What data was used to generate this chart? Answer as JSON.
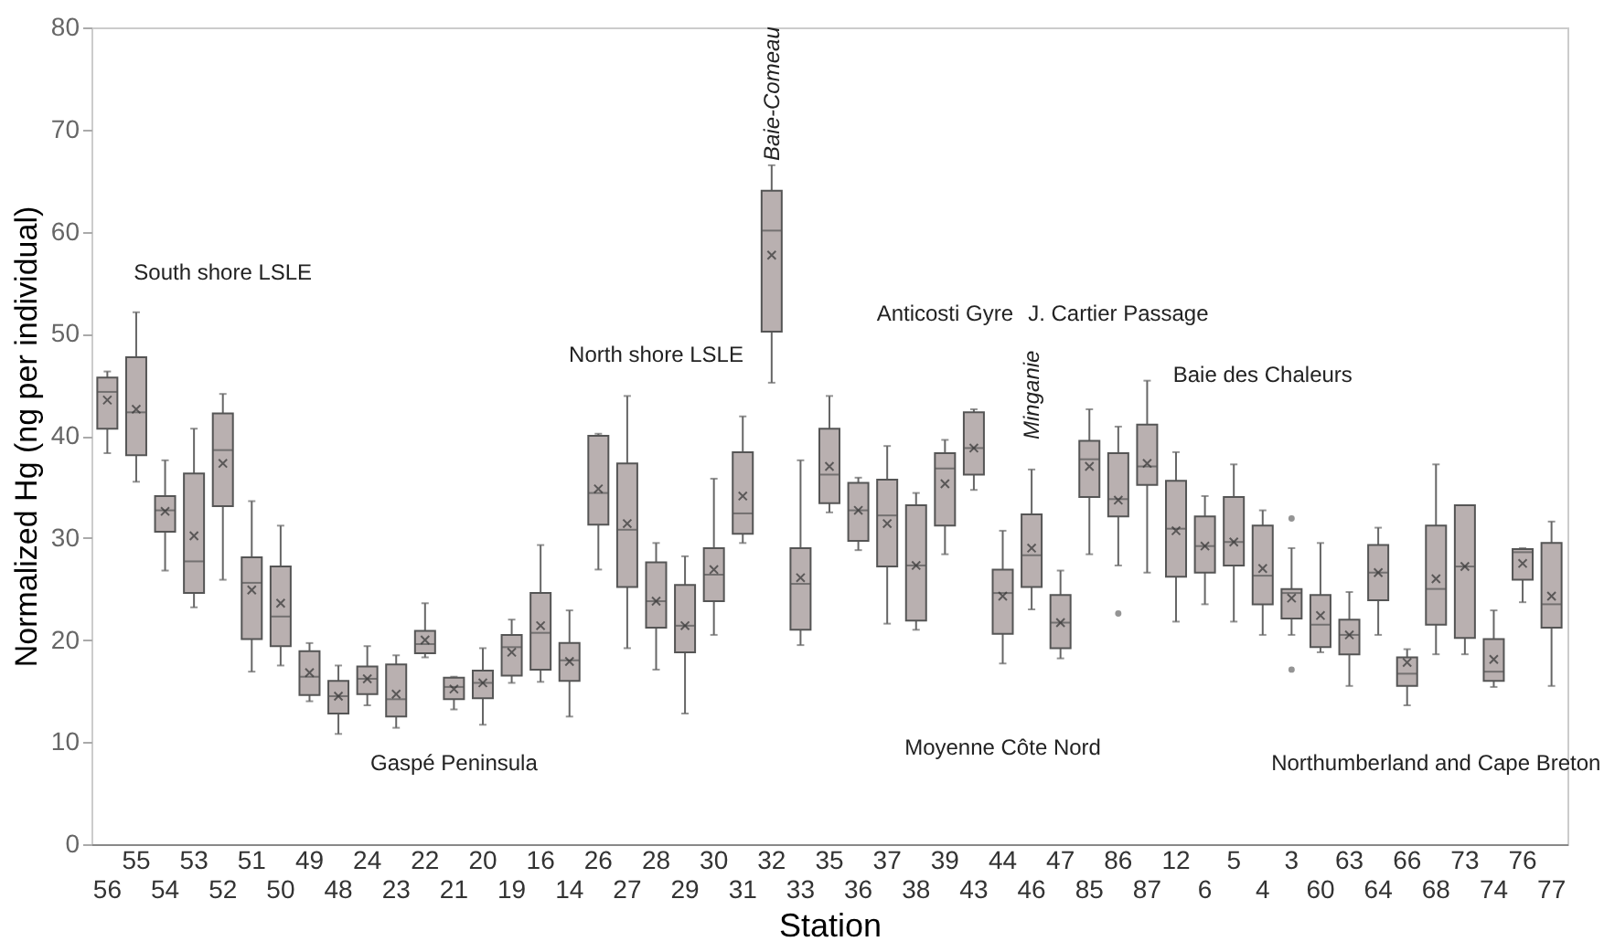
{
  "chart_data": {
    "type": "box",
    "xlabel": "Station",
    "ylabel": "Normalized Hg (ng per individual)",
    "categories": [
      "56",
      "55",
      "54",
      "53",
      "52",
      "51",
      "50",
      "49",
      "48",
      "24",
      "23",
      "22",
      "21",
      "20",
      "19",
      "16",
      "14",
      "26",
      "27",
      "28",
      "29",
      "30",
      "31",
      "32",
      "33",
      "35",
      "36",
      "37",
      "38",
      "39",
      "43",
      "44",
      "46",
      "47",
      "85",
      "86",
      "87",
      "12",
      "6",
      "5",
      "4",
      "3",
      "60",
      "63",
      "64",
      "66",
      "68",
      "73",
      "74",
      "76",
      "77"
    ],
    "color": "#b9b0b0",
    "boxes": [
      {
        "low": 38.3,
        "q1": 40.7,
        "median": 44.3,
        "q3": 45.7,
        "high": 46.3,
        "mean": 43.5
      },
      {
        "low": 35.5,
        "q1": 38.1,
        "median": 42.3,
        "q3": 47.7,
        "high": 52.1,
        "mean": 42.6
      },
      {
        "low": 26.8,
        "q1": 30.6,
        "median": 32.7,
        "q3": 34.1,
        "high": 37.6,
        "mean": 32.6
      },
      {
        "low": 23.2,
        "q1": 24.6,
        "median": 27.7,
        "q3": 36.3,
        "high": 40.7,
        "mean": 30.2
      },
      {
        "low": 25.9,
        "q1": 33.1,
        "median": 38.6,
        "q3": 42.2,
        "high": 44.1,
        "mean": 37.3
      },
      {
        "low": 16.9,
        "q1": 20.1,
        "median": 25.6,
        "q3": 28.1,
        "high": 33.6,
        "mean": 24.9
      },
      {
        "low": 17.5,
        "q1": 19.4,
        "median": 22.3,
        "q3": 27.2,
        "high": 31.2,
        "mean": 23.6
      },
      {
        "low": 14.0,
        "q1": 14.6,
        "median": 16.4,
        "q3": 18.9,
        "high": 19.7,
        "mean": 16.8
      },
      {
        "low": 10.8,
        "q1": 12.8,
        "median": 14.5,
        "q3": 16.0,
        "high": 17.5,
        "mean": 14.5
      },
      {
        "low": 13.6,
        "q1": 14.7,
        "median": 16.2,
        "q3": 17.4,
        "high": 19.4,
        "mean": 16.2
      },
      {
        "low": 11.4,
        "q1": 12.5,
        "median": 14.2,
        "q3": 17.6,
        "high": 18.5,
        "mean": 14.7
      },
      {
        "low": 18.3,
        "q1": 18.7,
        "median": 19.6,
        "q3": 20.9,
        "high": 23.6,
        "mean": 20.0
      },
      {
        "low": 13.2,
        "q1": 14.2,
        "median": 15.4,
        "q3": 16.3,
        "high": 16.4,
        "mean": 15.2
      },
      {
        "low": 11.7,
        "q1": 14.3,
        "median": 15.8,
        "q3": 17.0,
        "high": 19.2,
        "mean": 15.8
      },
      {
        "low": 15.8,
        "q1": 16.5,
        "median": 19.3,
        "q3": 20.5,
        "high": 22.0,
        "mean": 18.8
      },
      {
        "low": 15.9,
        "q1": 17.1,
        "median": 20.7,
        "q3": 24.6,
        "high": 29.3,
        "mean": 21.4
      },
      {
        "low": 12.5,
        "q1": 16.0,
        "median": 18.0,
        "q3": 19.7,
        "high": 22.9,
        "mean": 17.9
      },
      {
        "low": 26.9,
        "q1": 31.3,
        "median": 34.4,
        "q3": 40.0,
        "high": 40.2,
        "mean": 34.8
      },
      {
        "low": 19.2,
        "q1": 25.2,
        "median": 30.8,
        "q3": 37.3,
        "high": 43.9,
        "mean": 31.4
      },
      {
        "low": 17.1,
        "q1": 21.2,
        "median": 23.8,
        "q3": 27.6,
        "high": 29.5,
        "mean": 23.8
      },
      {
        "low": 12.8,
        "q1": 18.8,
        "median": 21.4,
        "q3": 25.4,
        "high": 28.2,
        "mean": 21.4
      },
      {
        "low": 20.5,
        "q1": 23.8,
        "median": 26.4,
        "q3": 29.0,
        "high": 35.8,
        "mean": 26.9
      },
      {
        "low": 29.5,
        "q1": 30.4,
        "median": 32.4,
        "q3": 38.4,
        "high": 41.9,
        "mean": 34.1
      },
      {
        "low": 45.2,
        "q1": 50.2,
        "median": 60.1,
        "q3": 64.0,
        "high": 66.5,
        "mean": 57.7
      },
      {
        "low": 19.5,
        "q1": 21.0,
        "median": 25.5,
        "q3": 29.0,
        "high": 37.6,
        "mean": 26.1
      },
      {
        "low": 32.5,
        "q1": 33.4,
        "median": 36.2,
        "q3": 40.7,
        "high": 43.9,
        "mean": 37.0
      },
      {
        "low": 28.8,
        "q1": 29.7,
        "median": 32.7,
        "q3": 35.4,
        "high": 35.9,
        "mean": 32.7
      },
      {
        "low": 21.6,
        "q1": 27.2,
        "median": 32.2,
        "q3": 35.7,
        "high": 39.0,
        "mean": 31.4
      },
      {
        "low": 21.0,
        "q1": 21.9,
        "median": 27.3,
        "q3": 33.2,
        "high": 34.4,
        "mean": 27.3
      },
      {
        "low": 28.4,
        "q1": 31.2,
        "median": 36.8,
        "q3": 38.3,
        "high": 39.6,
        "mean": 35.3
      },
      {
        "low": 34.7,
        "q1": 36.2,
        "median": 38.8,
        "q3": 42.3,
        "high": 42.6,
        "mean": 38.8
      },
      {
        "low": 17.7,
        "q1": 20.6,
        "median": 24.6,
        "q3": 26.9,
        "high": 30.7,
        "mean": 24.3
      },
      {
        "low": 23.0,
        "q1": 25.2,
        "median": 28.3,
        "q3": 32.3,
        "high": 36.7,
        "mean": 29.0
      },
      {
        "low": 18.2,
        "q1": 19.2,
        "median": 21.7,
        "q3": 24.4,
        "high": 26.8,
        "mean": 21.7
      },
      {
        "low": 28.4,
        "q1": 34.0,
        "median": 37.7,
        "q3": 39.5,
        "high": 42.6,
        "mean": 37.0
      },
      {
        "low": 27.3,
        "q1": 32.1,
        "median": 33.8,
        "q3": 38.3,
        "high": 40.9,
        "mean": 33.7,
        "outliers": [
          22.6
        ]
      },
      {
        "low": 26.6,
        "q1": 35.2,
        "median": 37.0,
        "q3": 41.1,
        "high": 45.4,
        "mean": 37.3
      },
      {
        "low": 21.8,
        "q1": 26.2,
        "median": 30.9,
        "q3": 35.6,
        "high": 38.4,
        "mean": 30.7
      },
      {
        "low": 23.5,
        "q1": 26.6,
        "median": 29.2,
        "q3": 32.1,
        "high": 34.1,
        "mean": 29.2
      },
      {
        "low": 21.8,
        "q1": 27.3,
        "median": 29.6,
        "q3": 34.0,
        "high": 37.2,
        "mean": 29.6
      },
      {
        "low": 20.5,
        "q1": 23.5,
        "median": 26.3,
        "q3": 31.2,
        "high": 32.7,
        "mean": 27.0
      },
      {
        "low": 20.5,
        "q1": 22.1,
        "median": 24.6,
        "q3": 25.0,
        "high": 29.0,
        "mean": 24.1,
        "outliers": [
          31.9,
          17.1
        ]
      },
      {
        "low": 18.8,
        "q1": 19.3,
        "median": 21.5,
        "q3": 24.4,
        "high": 29.5,
        "mean": 22.4
      },
      {
        "low": 15.5,
        "q1": 18.6,
        "median": 20.5,
        "q3": 22.0,
        "high": 24.7,
        "mean": 20.5
      },
      {
        "low": 20.5,
        "q1": 23.9,
        "median": 26.6,
        "q3": 29.3,
        "high": 31.0,
        "mean": 26.6
      },
      {
        "low": 13.6,
        "q1": 15.5,
        "median": 16.7,
        "q3": 18.3,
        "high": 19.1,
        "mean": 17.8
      },
      {
        "low": 18.6,
        "q1": 21.5,
        "median": 25.0,
        "q3": 31.2,
        "high": 37.2,
        "mean": 26.0
      },
      {
        "low": 18.6,
        "q1": 20.2,
        "median": 27.2,
        "q3": 33.2,
        "high": 33.2,
        "mean": 27.2
      },
      {
        "low": 15.4,
        "q1": 16.0,
        "median": 16.9,
        "q3": 20.1,
        "high": 22.9,
        "mean": 18.1
      },
      {
        "low": 23.7,
        "q1": 25.9,
        "median": 28.6,
        "q3": 28.9,
        "high": 29.0,
        "mean": 27.5
      },
      {
        "low": 15.5,
        "q1": 21.2,
        "median": 23.5,
        "q3": 29.5,
        "high": 31.6,
        "mean": 24.3
      }
    ],
    "ylim": [
      0,
      80
    ],
    "yticks": [
      0,
      10,
      20,
      30,
      40,
      50,
      60,
      70,
      80
    ],
    "grid": false,
    "annotations": [
      "South shore LSLE",
      "Gaspé Peninsula",
      "North shore LSLE",
      "Baie-Comeau",
      "Anticosti Gyre",
      "Minganie",
      "J. Cartier Passage",
      "Moyenne Côte Nord",
      "Baie des Chaleurs",
      "Northumberland and Cape Breton"
    ]
  }
}
